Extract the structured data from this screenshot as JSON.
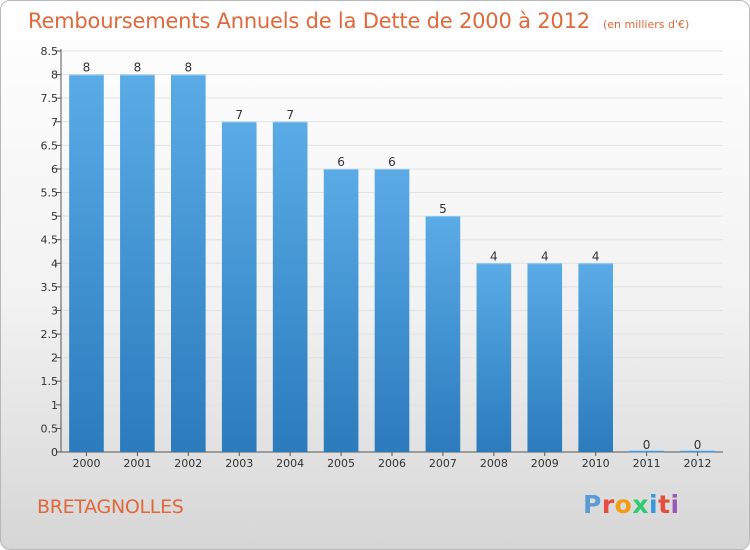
{
  "header": {
    "title": "Remboursements Annuels de la Dette de 2000 à 2012",
    "unit": "(en milliers d'€)"
  },
  "footer": {
    "location": "BRETAGNOLLES",
    "logo_letters": [
      "P",
      "r",
      "o",
      "x",
      "i",
      "t",
      "i"
    ],
    "logo_colors": [
      "#5b9bd5",
      "#e74c3c",
      "#f39c12",
      "#2ecc71",
      "#3498db",
      "#e74c3c",
      "#9b59b6"
    ]
  },
  "chart_data": {
    "type": "bar",
    "title": "Remboursements Annuels de la Dette de 2000 à 2012",
    "categories": [
      "2000",
      "2001",
      "2002",
      "2003",
      "2004",
      "2005",
      "2006",
      "2007",
      "2008",
      "2009",
      "2010",
      "2011",
      "2012"
    ],
    "values": [
      8,
      8,
      8,
      7,
      7,
      6,
      6,
      5,
      4,
      4,
      4,
      0,
      0
    ],
    "data_labels": [
      "8",
      "8",
      "8",
      "7",
      "7",
      "6",
      "6",
      "5",
      "4",
      "4",
      "4",
      "0",
      "0"
    ],
    "ylim": [
      0,
      8.5
    ],
    "yticks": [
      "0",
      "0.5",
      "1",
      "1.5",
      "2",
      "2.5",
      "3",
      "3.5",
      "4",
      "4.5",
      "5",
      "5.5",
      "6",
      "6.5",
      "7",
      "7.5",
      "8",
      "8.5"
    ],
    "ytick_values": [
      0,
      0.5,
      1,
      1.5,
      2,
      2.5,
      3,
      3.5,
      4,
      4.5,
      5,
      5.5,
      6,
      6.5,
      7,
      7.5,
      8,
      8.5
    ],
    "grid": true,
    "bar_color_top": "#5aabe6",
    "bar_color_bottom": "#2b7bbd",
    "xlabel": "",
    "ylabel": ""
  }
}
